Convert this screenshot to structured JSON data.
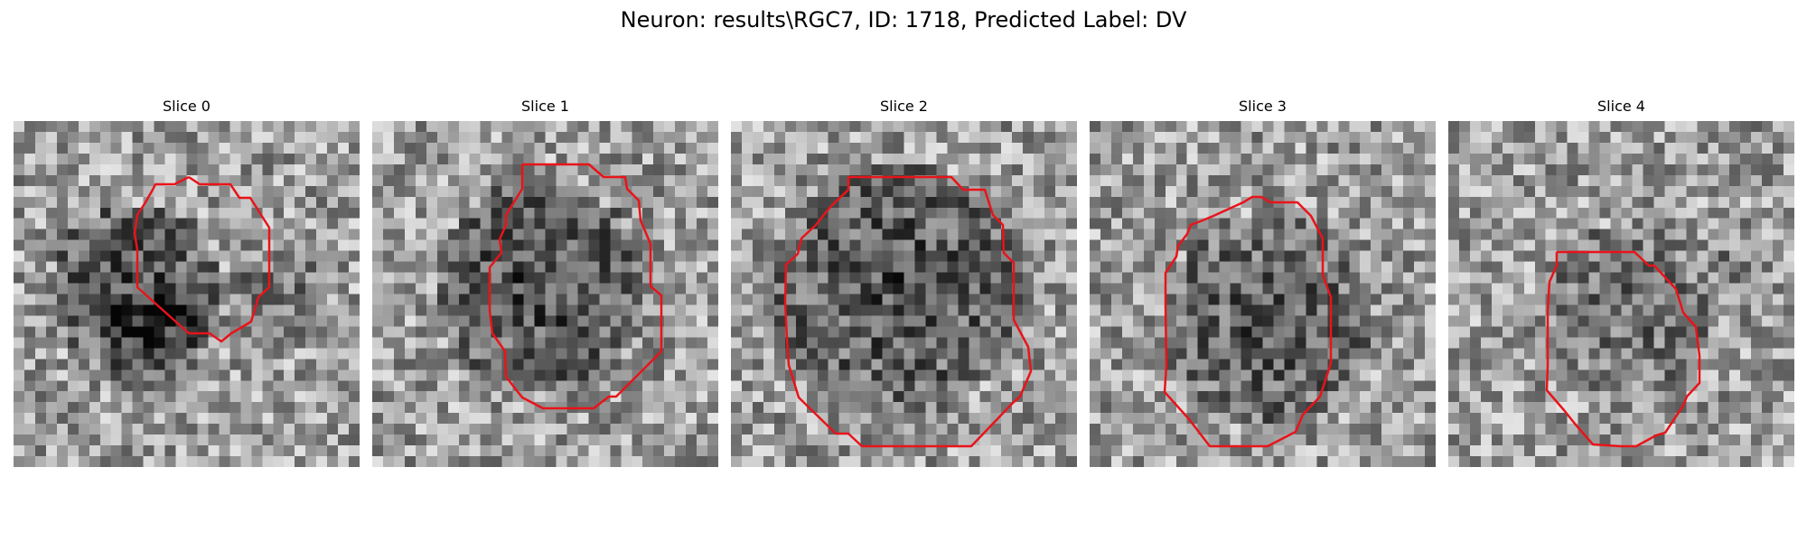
{
  "figure": {
    "suptitle": "Neuron: results\\RGC7, ID: 1718, Predicted Label: DV",
    "outline_color": "#e8141a",
    "slices": [
      {
        "title": "Slice 0"
      },
      {
        "title": "Slice 1"
      },
      {
        "title": "Slice 2"
      },
      {
        "title": "Slice 3"
      },
      {
        "title": "Slice 4"
      }
    ]
  }
}
